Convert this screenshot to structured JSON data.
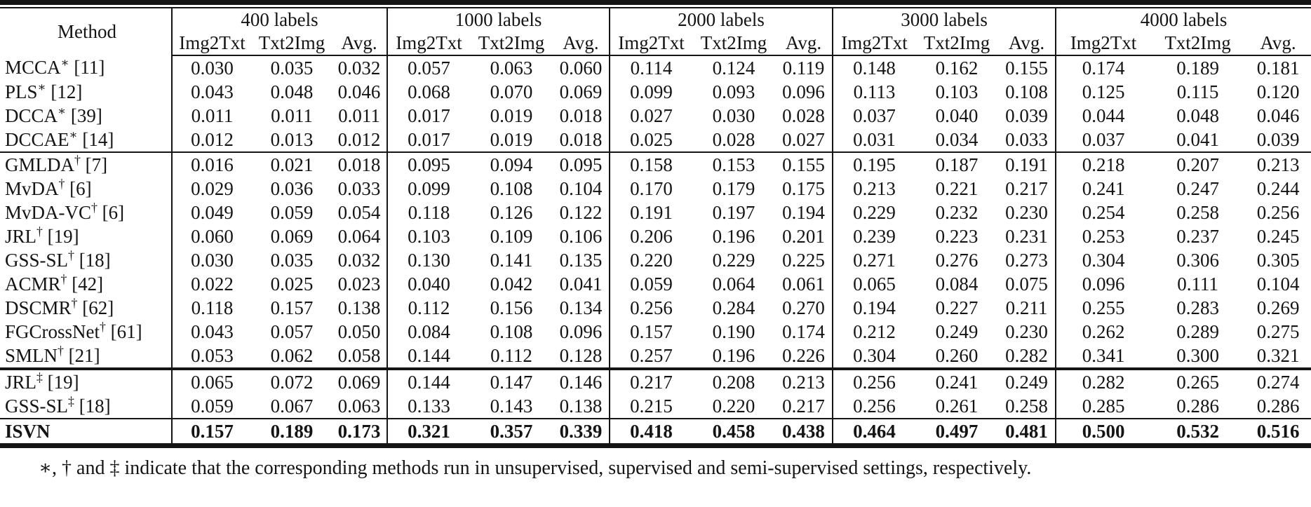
{
  "table": {
    "method_header": "Method",
    "groups": [
      {
        "label": "400 labels",
        "cols": [
          "Img2Txt",
          "Txt2Img",
          "Avg."
        ]
      },
      {
        "label": "1000 labels",
        "cols": [
          "Img2Txt",
          "Txt2Img",
          "Avg."
        ]
      },
      {
        "label": "2000 labels",
        "cols": [
          "Img2Txt",
          "Txt2Img",
          "Avg."
        ]
      },
      {
        "label": "3000 labels",
        "cols": [
          "Img2Txt",
          "Txt2Img",
          "Avg."
        ]
      },
      {
        "label": "4000 labels",
        "cols": [
          "Img2Txt",
          "Txt2Img",
          "Avg."
        ]
      }
    ],
    "rows": [
      {
        "method": "MCCA",
        "marker": "∗",
        "ref": "[11]",
        "section": 1,
        "bold": false,
        "values": [
          "0.030",
          "0.035",
          "0.032",
          "0.057",
          "0.063",
          "0.060",
          "0.114",
          "0.124",
          "0.119",
          "0.148",
          "0.162",
          "0.155",
          "0.174",
          "0.189",
          "0.181"
        ]
      },
      {
        "method": "PLS",
        "marker": "∗",
        "ref": "[12]",
        "section": 1,
        "bold": false,
        "values": [
          "0.043",
          "0.048",
          "0.046",
          "0.068",
          "0.070",
          "0.069",
          "0.099",
          "0.093",
          "0.096",
          "0.113",
          "0.103",
          "0.108",
          "0.125",
          "0.115",
          "0.120"
        ]
      },
      {
        "method": "DCCA",
        "marker": "∗",
        "ref": "[39]",
        "section": 1,
        "bold": false,
        "values": [
          "0.011",
          "0.011",
          "0.011",
          "0.017",
          "0.019",
          "0.018",
          "0.027",
          "0.030",
          "0.028",
          "0.037",
          "0.040",
          "0.039",
          "0.044",
          "0.048",
          "0.046"
        ]
      },
      {
        "method": "DCCAE",
        "marker": "∗",
        "ref": "[14]",
        "section": 1,
        "bold": false,
        "values": [
          "0.012",
          "0.013",
          "0.012",
          "0.017",
          "0.019",
          "0.018",
          "0.025",
          "0.028",
          "0.027",
          "0.031",
          "0.034",
          "0.033",
          "0.037",
          "0.041",
          "0.039"
        ]
      },
      {
        "method": "GMLDA",
        "marker": "†",
        "ref": "[7]",
        "section": 2,
        "bold": false,
        "values": [
          "0.016",
          "0.021",
          "0.018",
          "0.095",
          "0.094",
          "0.095",
          "0.158",
          "0.153",
          "0.155",
          "0.195",
          "0.187",
          "0.191",
          "0.218",
          "0.207",
          "0.213"
        ]
      },
      {
        "method": "MvDA",
        "marker": "†",
        "ref": "[6]",
        "section": 2,
        "bold": false,
        "values": [
          "0.029",
          "0.036",
          "0.033",
          "0.099",
          "0.108",
          "0.104",
          "0.170",
          "0.179",
          "0.175",
          "0.213",
          "0.221",
          "0.217",
          "0.241",
          "0.247",
          "0.244"
        ]
      },
      {
        "method": "MvDA-VC",
        "marker": "†",
        "ref": "[6]",
        "section": 2,
        "bold": false,
        "values": [
          "0.049",
          "0.059",
          "0.054",
          "0.118",
          "0.126",
          "0.122",
          "0.191",
          "0.197",
          "0.194",
          "0.229",
          "0.232",
          "0.230",
          "0.254",
          "0.258",
          "0.256"
        ]
      },
      {
        "method": "JRL",
        "marker": "†",
        "ref": "[19]",
        "section": 2,
        "bold": false,
        "values": [
          "0.060",
          "0.069",
          "0.064",
          "0.103",
          "0.109",
          "0.106",
          "0.206",
          "0.196",
          "0.201",
          "0.239",
          "0.223",
          "0.231",
          "0.253",
          "0.237",
          "0.245"
        ]
      },
      {
        "method": "GSS-SL",
        "marker": "†",
        "ref": "[18]",
        "section": 2,
        "bold": false,
        "values": [
          "0.030",
          "0.035",
          "0.032",
          "0.130",
          "0.141",
          "0.135",
          "0.220",
          "0.229",
          "0.225",
          "0.271",
          "0.276",
          "0.273",
          "0.304",
          "0.306",
          "0.305"
        ]
      },
      {
        "method": "ACMR",
        "marker": "†",
        "ref": "[42]",
        "section": 2,
        "bold": false,
        "values": [
          "0.022",
          "0.025",
          "0.023",
          "0.040",
          "0.042",
          "0.041",
          "0.059",
          "0.064",
          "0.061",
          "0.065",
          "0.084",
          "0.075",
          "0.096",
          "0.111",
          "0.104"
        ]
      },
      {
        "method": "DSCMR",
        "marker": "†",
        "ref": "[62]",
        "section": 2,
        "bold": false,
        "values": [
          "0.118",
          "0.157",
          "0.138",
          "0.112",
          "0.156",
          "0.134",
          "0.256",
          "0.284",
          "0.270",
          "0.194",
          "0.227",
          "0.211",
          "0.255",
          "0.283",
          "0.269"
        ]
      },
      {
        "method": "FGCrossNet",
        "marker": "†",
        "ref": "[61]",
        "section": 2,
        "bold": false,
        "values": [
          "0.043",
          "0.057",
          "0.050",
          "0.084",
          "0.108",
          "0.096",
          "0.157",
          "0.190",
          "0.174",
          "0.212",
          "0.249",
          "0.230",
          "0.262",
          "0.289",
          "0.275"
        ]
      },
      {
        "method": "SMLN",
        "marker": "†",
        "ref": "[21]",
        "section": 2,
        "bold": false,
        "values": [
          "0.053",
          "0.062",
          "0.058",
          "0.144",
          "0.112",
          "0.128",
          "0.257",
          "0.196",
          "0.226",
          "0.304",
          "0.260",
          "0.282",
          "0.341",
          "0.300",
          "0.321"
        ]
      },
      {
        "method": "JRL",
        "marker": "‡",
        "ref": "[19]",
        "section": 3,
        "bold": false,
        "values": [
          "0.065",
          "0.072",
          "0.069",
          "0.144",
          "0.147",
          "0.146",
          "0.217",
          "0.208",
          "0.213",
          "0.256",
          "0.241",
          "0.249",
          "0.282",
          "0.265",
          "0.274"
        ]
      },
      {
        "method": "GSS-SL",
        "marker": "‡",
        "ref": "[18]",
        "section": 3,
        "bold": false,
        "values": [
          "0.059",
          "0.067",
          "0.063",
          "0.133",
          "0.143",
          "0.138",
          "0.215",
          "0.220",
          "0.217",
          "0.256",
          "0.261",
          "0.258",
          "0.285",
          "0.286",
          "0.286"
        ]
      },
      {
        "method": "ISVN",
        "marker": "",
        "ref": "",
        "section": 4,
        "bold": true,
        "values": [
          "0.157",
          "0.189",
          "0.173",
          "0.321",
          "0.357",
          "0.339",
          "0.418",
          "0.458",
          "0.438",
          "0.464",
          "0.497",
          "0.481",
          "0.500",
          "0.532",
          "0.516"
        ]
      }
    ],
    "footnote": "∗, † and ‡ indicate that the corresponding methods run in unsupervised, supervised and semi-supervised settings, respectively."
  }
}
